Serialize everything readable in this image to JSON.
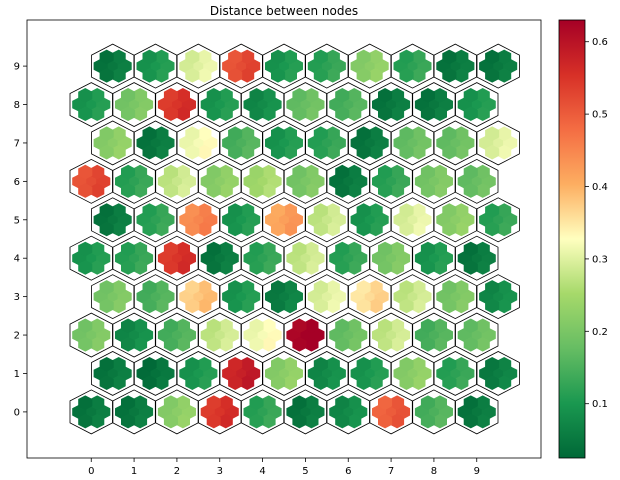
{
  "chart_data": {
    "type": "heatmap",
    "subtype": "hexagonal self-organizing map (U-matrix)",
    "title": "Distance between nodes",
    "x_ticks": [
      "0",
      "1",
      "2",
      "3",
      "4",
      "5",
      "6",
      "7",
      "8",
      "9"
    ],
    "y_ticks": [
      "0",
      "1",
      "2",
      "3",
      "4",
      "5",
      "6",
      "7",
      "8",
      "9"
    ],
    "xlim": [
      -1.5,
      10.5
    ],
    "ylim": [
      -1.2,
      10.2
    ],
    "colormap": "RdYlGn_r",
    "colorbar": {
      "range": [
        0.025,
        0.63
      ],
      "ticks": [
        "0.1",
        "0.2",
        "0.3",
        "0.4",
        "0.5",
        "0.6"
      ]
    },
    "grid_rows": 10,
    "grid_cols": 10,
    "nodes_note": "Each value is the mean distance of a map node to its neighbours; rows 0-9 bottom to top, columns 0-9.",
    "rows": [
      [
        0.05,
        0.05,
        0.22,
        0.55,
        0.12,
        0.05,
        0.08,
        0.5,
        0.15,
        0.05
      ],
      [
        0.05,
        0.04,
        0.1,
        0.58,
        0.22,
        0.08,
        0.1,
        0.22,
        0.12,
        0.06
      ],
      [
        0.2,
        0.08,
        0.15,
        0.28,
        0.32,
        0.63,
        0.18,
        0.28,
        0.15,
        0.18
      ],
      [
        0.2,
        0.15,
        0.38,
        0.1,
        0.06,
        0.3,
        0.36,
        0.28,
        0.2,
        0.08
      ],
      [
        0.1,
        0.12,
        0.55,
        0.05,
        0.12,
        0.28,
        0.12,
        0.2,
        0.1,
        0.05
      ],
      [
        0.05,
        0.12,
        0.45,
        0.1,
        0.42,
        0.28,
        0.1,
        0.3,
        0.22,
        0.12
      ],
      [
        0.52,
        0.12,
        0.28,
        0.22,
        0.25,
        0.2,
        0.05,
        0.12,
        0.2,
        0.18
      ],
      [
        0.22,
        0.05,
        0.32,
        0.15,
        0.1,
        0.12,
        0.05,
        0.18,
        0.18,
        0.3
      ],
      [
        0.1,
        0.2,
        0.55,
        0.1,
        0.08,
        0.18,
        0.15,
        0.05,
        0.05,
        0.1
      ],
      [
        0.05,
        0.1,
        0.3,
        0.52,
        0.1,
        0.12,
        0.22,
        0.12,
        0.05,
        0.05
      ]
    ]
  }
}
